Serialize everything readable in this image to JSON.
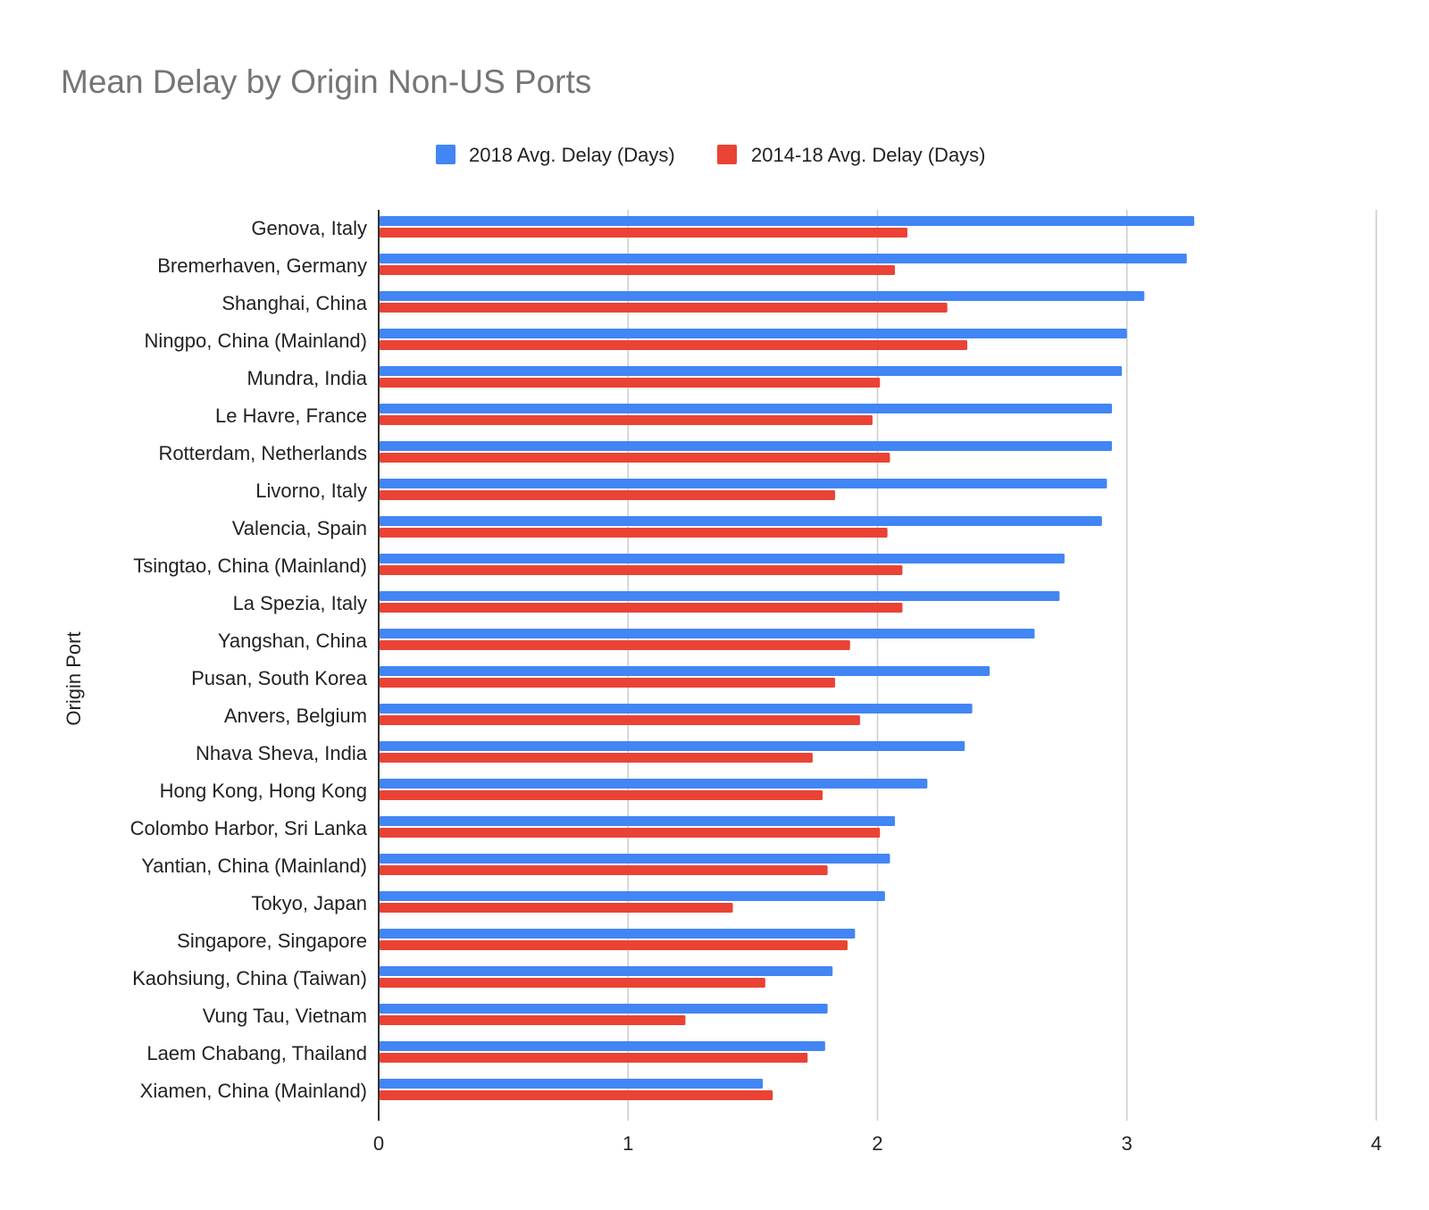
{
  "chart_data": {
    "type": "bar",
    "orientation": "horizontal",
    "title": "Mean Delay by Origin Non-US Ports",
    "xlabel": "",
    "ylabel": "Origin Port",
    "xlim": [
      0,
      4
    ],
    "x_ticks": [
      "0",
      "1",
      "2",
      "3",
      "4"
    ],
    "grid": true,
    "legend_position": "top",
    "categories": [
      "Genova, Italy",
      "Bremerhaven, Germany",
      "Shanghai, China",
      "Ningpo, China (Mainland)",
      "Mundra, India",
      "Le Havre, France",
      "Rotterdam, Netherlands",
      "Livorno, Italy",
      "Valencia, Spain",
      "Tsingtao, China (Mainland)",
      "La Spezia, Italy",
      "Yangshan, China",
      "Pusan, South Korea",
      "Anvers, Belgium",
      "Nhava Sheva, India",
      "Hong Kong, Hong Kong",
      "Colombo Harbor, Sri Lanka",
      "Yantian, China (Mainland)",
      "Tokyo, Japan",
      "Singapore, Singapore",
      "Kaohsiung, China (Taiwan)",
      "Vung Tau, Vietnam",
      "Laem Chabang, Thailand",
      "Xiamen, China (Mainland)"
    ],
    "series": [
      {
        "name": "2018 Avg. Delay (Days)",
        "color": "#4285f4",
        "values": [
          3.27,
          3.24,
          3.07,
          3.0,
          2.98,
          2.94,
          2.94,
          2.92,
          2.9,
          2.75,
          2.73,
          2.63,
          2.45,
          2.38,
          2.35,
          2.2,
          2.07,
          2.05,
          2.03,
          1.91,
          1.82,
          1.8,
          1.79,
          1.54
        ]
      },
      {
        "name": "2014-18 Avg. Delay (Days)",
        "color": "#ea4335",
        "values": [
          2.12,
          2.07,
          2.28,
          2.36,
          2.01,
          1.98,
          2.05,
          1.83,
          2.04,
          2.1,
          2.1,
          1.89,
          1.83,
          1.93,
          1.74,
          1.78,
          2.01,
          1.8,
          1.42,
          1.88,
          1.55,
          1.23,
          1.72,
          1.58
        ]
      }
    ]
  }
}
